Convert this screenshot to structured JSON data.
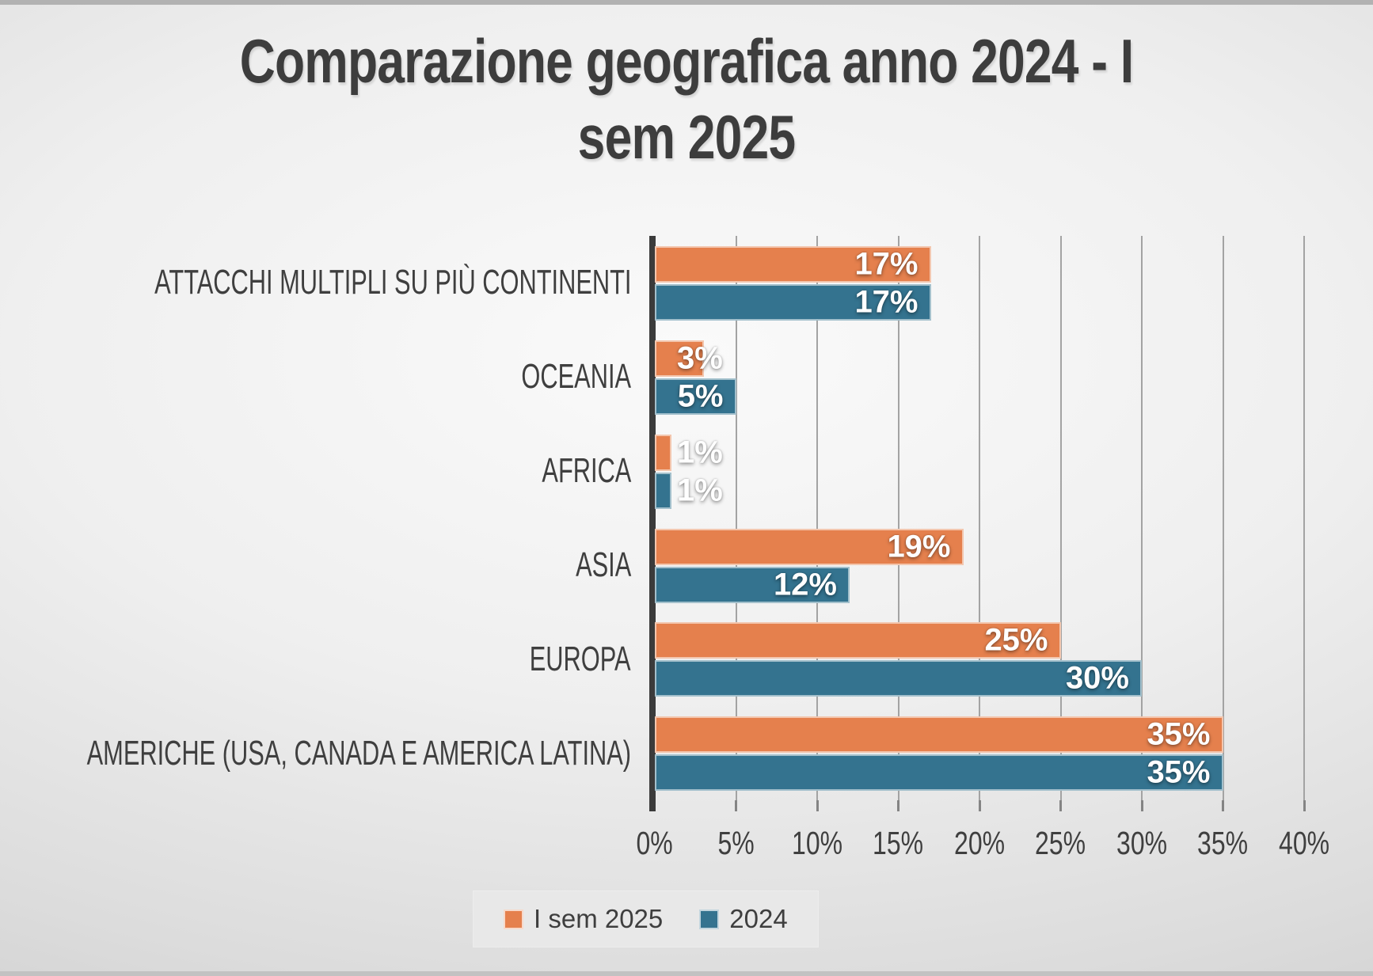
{
  "title": {
    "line1": "Comparazione geografica anno 2024 - I",
    "line2": "sem 2025",
    "full": "Comparazione geografica anno 2024 - I sem 2025"
  },
  "legend": {
    "items": [
      {
        "label": "I sem 2025",
        "color": "#E5804D"
      },
      {
        "label": "2024",
        "color": "#34738F"
      }
    ]
  },
  "chart_data": {
    "type": "bar",
    "orientation": "horizontal",
    "title": "Comparazione geografica anno 2024 - I sem 2025",
    "categories": [
      "ATTACCHI MULTIPLI SU PIÙ CONTINENTI",
      "OCEANIA",
      "AFRICA",
      "ASIA",
      "EUROPA",
      "AMERICHE (USA, CANADA E AMERICA LATINA)"
    ],
    "series": [
      {
        "name": "I sem 2025",
        "color": "#E5804D",
        "values": [
          17,
          3,
          1,
          19,
          25,
          35
        ],
        "labels": [
          "17%",
          "3%",
          "1%",
          "19%",
          "25%",
          "35%"
        ]
      },
      {
        "name": "2024",
        "color": "#34738F",
        "values": [
          17,
          5,
          1,
          12,
          30,
          35
        ],
        "labels": [
          "17%",
          "5%",
          "1%",
          "12%",
          "30%",
          "35%"
        ]
      }
    ],
    "xlabel": "",
    "ylabel": "",
    "xlim": [
      0,
      40
    ],
    "xtick_step": 5,
    "xtick_labels": [
      "0%",
      "5%",
      "10%",
      "15%",
      "20%",
      "25%",
      "30%",
      "35%",
      "40%"
    ],
    "grid": "vertical",
    "legend_position": "bottom",
    "colors": {
      "grid": "#a3a3a3",
      "axis_line": "#3b3b3b",
      "text": "#3f3f3f",
      "bar_label": "#ffffff"
    }
  }
}
